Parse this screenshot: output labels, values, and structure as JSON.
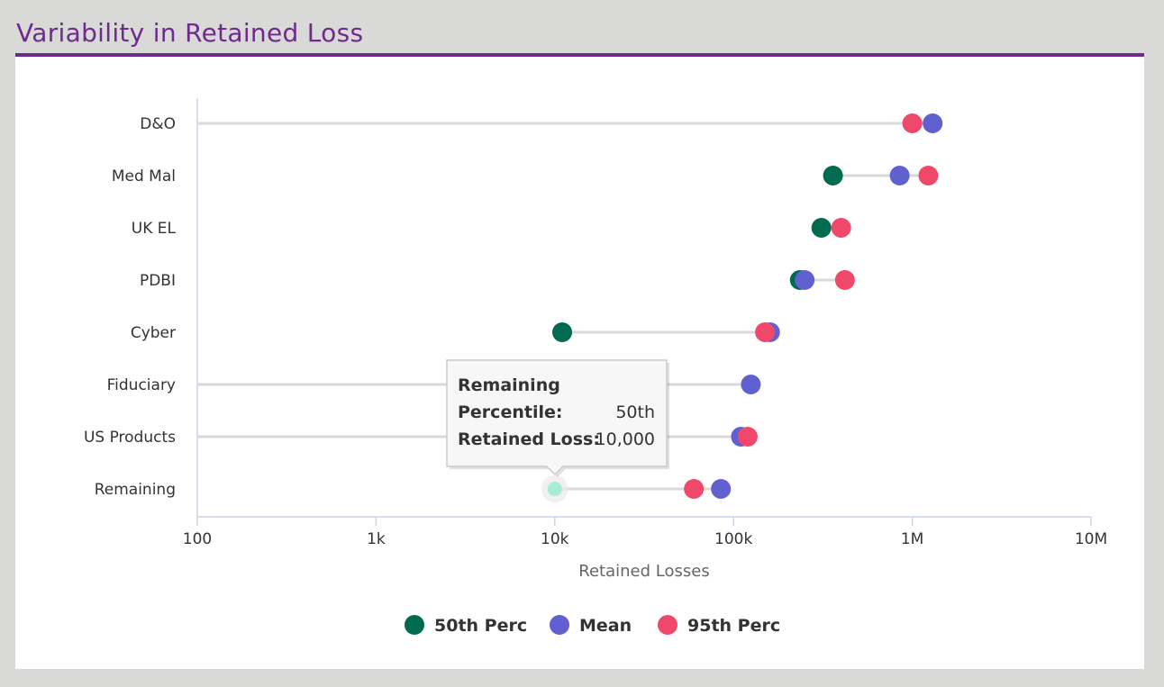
{
  "header": {
    "title": "Variability in Retained Loss"
  },
  "chart_data": {
    "type": "dumbbell",
    "x_scale": "log",
    "xlim": [
      100,
      10000000
    ],
    "x_ticks": [
      100,
      1000,
      10000,
      100000,
      1000000,
      10000000
    ],
    "x_tick_labels": [
      "100",
      "1k",
      "10k",
      "100k",
      "1M",
      "10M"
    ],
    "xlabel": "Retained Losses",
    "legend_position": "bottom-center",
    "categories": [
      "D&O",
      "Med Mal",
      "UK EL",
      "PDBI",
      "Cyber",
      "Fiduciary",
      "US Products",
      "Remaining"
    ],
    "series": [
      {
        "name": "50th Perc",
        "color": "#006b4f",
        "values": [
          100,
          360000,
          310000,
          235000,
          11000,
          100,
          100,
          10000
        ]
      },
      {
        "name": "Mean",
        "color": "#6060d0",
        "values": [
          1300000,
          850000,
          null,
          250000,
          160000,
          125000,
          110000,
          85000
        ]
      },
      {
        "name": "95th Perc",
        "color": "#f0486a",
        "values": [
          1000000,
          1230000,
          400000,
          420000,
          150000,
          null,
          120000,
          60000
        ]
      }
    ],
    "tooltip": {
      "category": "Remaining",
      "label_percentile": "Percentile",
      "value_percentile": "50th",
      "label_loss": "Retained Loss",
      "value_loss": "10,000"
    }
  }
}
